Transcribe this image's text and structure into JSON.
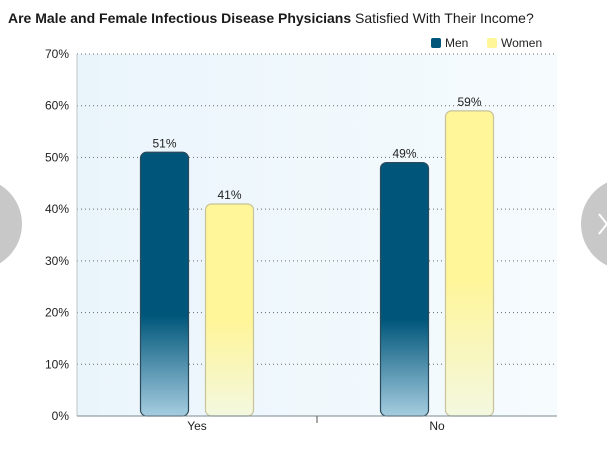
{
  "title": {
    "bold": "Are Male and Female Infectious Disease Physicians",
    "normal": "Satisfied With Their Income?"
  },
  "chart_data": {
    "type": "bar",
    "categories": [
      "Yes",
      "No"
    ],
    "series": [
      {
        "name": "Men",
        "values": [
          51,
          49
        ],
        "labels": [
          "51%",
          "49%"
        ]
      },
      {
        "name": "Women",
        "values": [
          41,
          59
        ],
        "labels": [
          "41%",
          "59%"
        ]
      }
    ],
    "ylim": [
      0,
      70
    ],
    "yticks": [
      "0%",
      "10%",
      "20%",
      "30%",
      "40%",
      "50%",
      "60%",
      "70%"
    ],
    "grid": true,
    "legend": "top-right"
  },
  "colors": {
    "men": "#00567a",
    "women": "#fff599",
    "plot_bg": "#eef7fc",
    "nav_arrow": "#c8c8c8"
  },
  "nav": {
    "prev_icon": "chevron-left-icon",
    "next_icon": "chevron-right-icon"
  }
}
